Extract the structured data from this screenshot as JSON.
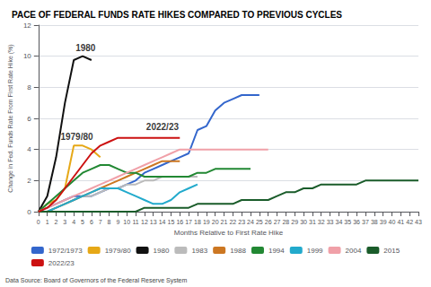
{
  "chart_data": {
    "type": "line",
    "title": "PACE OF FEDERAL FUNDS RATE HIKES COMPARED TO PREVIOUS CYCLES",
    "xlabel": "Months Relative to First Rate Hike",
    "ylabel": "Change in Fed. Funds Rate From First Rate Hike (%)",
    "source": "Data Source: Board of Governors of the Federal Reserve System",
    "xlim": [
      0,
      43
    ],
    "xticks": [
      0,
      1,
      2,
      3,
      4,
      5,
      6,
      7,
      8,
      9,
      10,
      11,
      12,
      13,
      14,
      15,
      16,
      17,
      18,
      19,
      20,
      21,
      22,
      23,
      24,
      25,
      26,
      27,
      28,
      29,
      30,
      31,
      32,
      33,
      34,
      35,
      36,
      37,
      38,
      39,
      40,
      41,
      42,
      43
    ],
    "ylim": [
      0,
      12
    ],
    "yticks": [
      0,
      2,
      4,
      6,
      8,
      10,
      12
    ],
    "grid": true,
    "legend": "bottom",
    "series": [
      {
        "name": "1972/1973",
        "color": "#3366cc",
        "x": [
          0,
          1,
          2,
          3,
          4,
          5,
          6,
          7,
          8,
          9,
          10,
          11,
          12,
          13,
          14,
          15,
          16,
          17,
          18,
          19,
          20,
          21,
          22,
          23,
          24,
          25
        ],
        "values": [
          0,
          0.25,
          0.5,
          0.75,
          1.0,
          1.0,
          1.0,
          1.25,
          1.5,
          1.5,
          1.75,
          2.0,
          2.5,
          2.75,
          3.0,
          3.25,
          3.5,
          3.75,
          5.25,
          5.5,
          6.5,
          7.0,
          7.25,
          7.5,
          7.5,
          7.5
        ]
      },
      {
        "name": "1979/80",
        "color": "#e6a817",
        "x": [
          0,
          1,
          2,
          3,
          4,
          5,
          6,
          7
        ],
        "values": [
          0,
          0.5,
          0.75,
          1.5,
          4.25,
          4.25,
          4.0,
          3.5
        ]
      },
      {
        "name": "1980",
        "color": "#111111",
        "x": [
          0,
          1,
          2,
          3,
          4,
          5,
          6
        ],
        "values": [
          0,
          1.0,
          3.5,
          7.0,
          9.75,
          10.0,
          9.75
        ]
      },
      {
        "name": "1983",
        "color": "#bbbbbb",
        "x": [
          0,
          1,
          2,
          3,
          4,
          5,
          6,
          7,
          8,
          9,
          10,
          11,
          12,
          13,
          14,
          15,
          16,
          17,
          18
        ],
        "values": [
          0,
          0.0,
          0.25,
          0.5,
          0.75,
          1.0,
          1.0,
          1.25,
          1.5,
          1.5,
          1.75,
          1.75,
          2.0,
          2.0,
          2.25,
          2.25,
          2.25,
          2.25,
          2.25
        ]
      },
      {
        "name": "1988",
        "color": "#cc7722",
        "x": [
          0,
          1,
          2,
          3,
          4,
          5,
          6,
          7,
          8,
          9,
          10,
          11,
          12,
          13,
          14,
          15,
          16
        ],
        "values": [
          0,
          0.0,
          0.25,
          0.5,
          0.75,
          1.0,
          1.25,
          1.5,
          1.75,
          2.0,
          2.25,
          2.5,
          2.75,
          3.0,
          3.25,
          3.25,
          3.25
        ]
      },
      {
        "name": "1994",
        "color": "#228833",
        "x": [
          0,
          1,
          2,
          3,
          4,
          5,
          6,
          7,
          8,
          9,
          10,
          11,
          12,
          13,
          14,
          15,
          16,
          17,
          18,
          19,
          20,
          21,
          22,
          23,
          24
        ],
        "values": [
          0,
          0.5,
          1.0,
          1.5,
          2.0,
          2.5,
          2.75,
          3.0,
          3.0,
          2.75,
          2.5,
          2.5,
          2.25,
          2.25,
          2.25,
          2.25,
          2.25,
          2.25,
          2.5,
          2.5,
          2.75,
          2.75,
          2.75,
          2.75,
          2.75
        ]
      },
      {
        "name": "1999",
        "color": "#22aacc",
        "x": [
          0,
          1,
          2,
          3,
          4,
          5,
          6,
          7,
          8,
          9,
          10,
          11,
          12,
          13,
          14,
          15,
          16,
          17,
          18
        ],
        "values": [
          0,
          0.0,
          0.25,
          0.5,
          0.75,
          1.0,
          1.25,
          1.5,
          1.5,
          1.5,
          1.25,
          1.0,
          0.75,
          0.5,
          0.5,
          0.75,
          1.25,
          1.5,
          1.75
        ]
      },
      {
        "name": "2004",
        "color": "#f0a0a8",
        "x": [
          0,
          1,
          2,
          3,
          4,
          5,
          6,
          7,
          8,
          9,
          10,
          11,
          12,
          13,
          14,
          15,
          16,
          17,
          18,
          19,
          20,
          21,
          22,
          23,
          24,
          25,
          26
        ],
        "values": [
          0,
          0.25,
          0.5,
          0.75,
          1.0,
          1.25,
          1.5,
          1.75,
          2.0,
          2.25,
          2.5,
          2.75,
          3.0,
          3.25,
          3.5,
          3.75,
          4.0,
          4.0,
          4.0,
          4.0,
          4.0,
          4.0,
          4.0,
          4.0,
          4.0,
          4.0,
          4.0
        ]
      },
      {
        "name": "2015",
        "color": "#1a5c2a",
        "x": [
          0,
          1,
          2,
          3,
          4,
          5,
          6,
          7,
          8,
          9,
          10,
          11,
          12,
          13,
          14,
          15,
          16,
          17,
          18,
          19,
          20,
          21,
          22,
          23,
          24,
          25,
          26,
          27,
          28,
          29,
          30,
          31,
          32,
          33,
          34,
          35,
          36,
          37,
          38,
          39,
          40,
          41,
          42,
          43
        ],
        "values": [
          0,
          0.0,
          0.0,
          0.0,
          0.0,
          0.0,
          0.0,
          0.0,
          0.0,
          0.0,
          0.0,
          0.0,
          0.25,
          0.25,
          0.25,
          0.25,
          0.25,
          0.25,
          0.5,
          0.5,
          0.5,
          0.5,
          0.5,
          0.75,
          0.75,
          0.75,
          0.75,
          1.0,
          1.25,
          1.25,
          1.5,
          1.5,
          1.75,
          1.75,
          1.75,
          1.75,
          1.75,
          2.0,
          2.0,
          2.0,
          2.0,
          2.0,
          2.0,
          2.0
        ]
      },
      {
        "name": "2022/23",
        "color": "#cc1111",
        "x": [
          0,
          1,
          2,
          3,
          4,
          5,
          6,
          7,
          8,
          9,
          10,
          11,
          12,
          13,
          14,
          15,
          16
        ],
        "values": [
          0,
          0.25,
          0.75,
          1.5,
          2.25,
          3.0,
          3.75,
          4.25,
          4.5,
          4.75,
          4.75,
          4.75,
          4.75,
          4.75,
          4.75,
          4.75,
          4.75
        ]
      }
    ],
    "annotations": [
      {
        "text": "1980",
        "x": 4.2,
        "y": 10.1
      },
      {
        "text": "1979/80",
        "x": 2.5,
        "y": 4.4
      },
      {
        "text": "2022/23",
        "x": 12.2,
        "y": 5.05
      }
    ]
  }
}
